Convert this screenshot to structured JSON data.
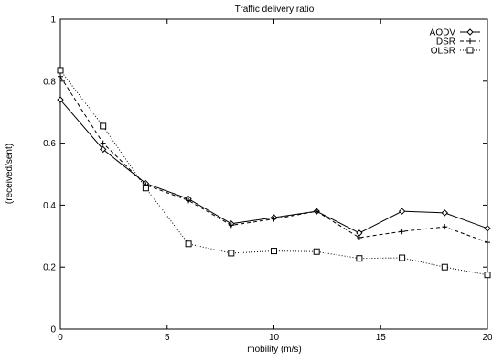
{
  "chart_data": {
    "type": "line",
    "title": "Traffic delivery ratio",
    "xlabel": "mobility (m/s)",
    "ylabel": "(received/sent)",
    "xlim": [
      0,
      20
    ],
    "ylim": [
      0,
      1
    ],
    "x_ticks": [
      "0",
      "5",
      "10",
      "15",
      "20"
    ],
    "y_ticks": [
      "0",
      "0.2",
      "0.4",
      "0.6",
      "0.8",
      "1"
    ],
    "grid": false,
    "legend_position": "top-right",
    "x": [
      0,
      2,
      4,
      6,
      8,
      10,
      12,
      14,
      16,
      18,
      20
    ],
    "series": [
      {
        "name": "AODV",
        "line_style": "solid",
        "marker": "diamond",
        "color": "#000000",
        "values": [
          0.74,
          0.58,
          0.47,
          0.42,
          0.34,
          0.36,
          0.38,
          0.31,
          0.38,
          0.375,
          0.325
        ]
      },
      {
        "name": "DSR",
        "line_style": "dashed",
        "marker": "plus",
        "color": "#000000",
        "values": [
          0.815,
          0.6,
          0.465,
          0.415,
          0.335,
          0.355,
          0.38,
          0.295,
          0.315,
          0.33,
          0.28
        ]
      },
      {
        "name": "OLSR",
        "line_style": "dotted",
        "marker": "square",
        "color": "#000000",
        "values": [
          0.835,
          0.655,
          0.455,
          0.275,
          0.245,
          0.252,
          0.25,
          0.228,
          0.23,
          0.2,
          0.175
        ]
      }
    ]
  }
}
